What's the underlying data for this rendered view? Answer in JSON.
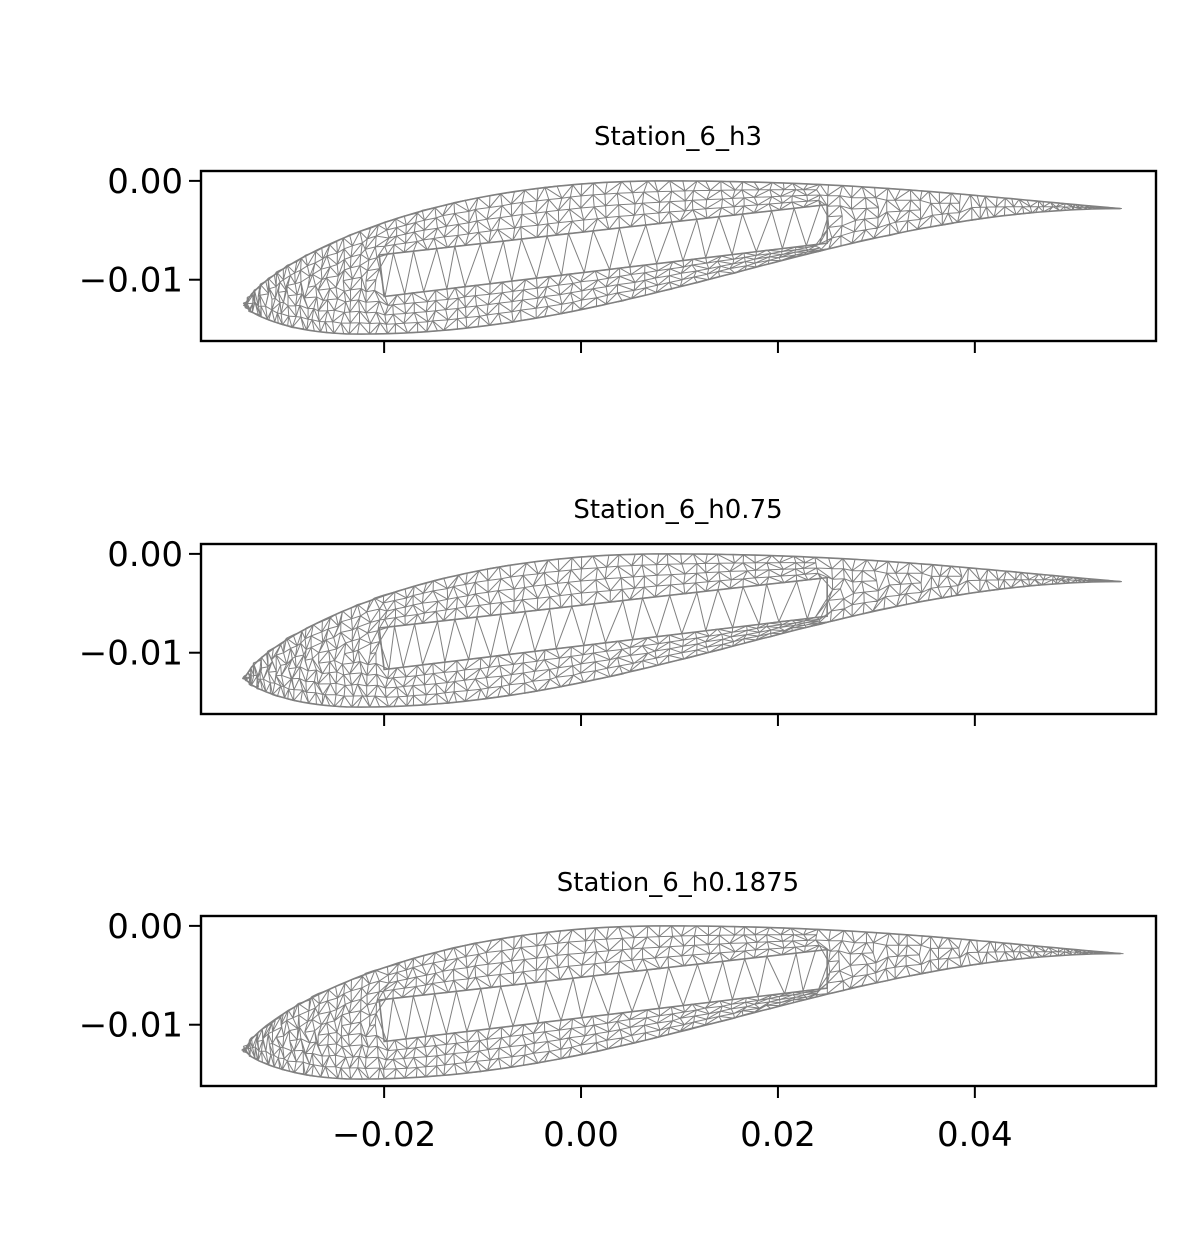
{
  "chart_data": [
    {
      "type": "mesh",
      "title": "Station_6_h3",
      "xlim": [
        -0.0386,
        0.0584
      ],
      "ylim": [
        -0.0162,
        0.001
      ],
      "xticks": [
        -0.02,
        0.0,
        0.02,
        0.04
      ],
      "xtick_labels": [
        "",
        "",
        "",
        ""
      ],
      "yticks": [
        0.0,
        -0.01
      ],
      "ytick_labels": [
        "0.00",
        "−0.01"
      ],
      "airfoil": {
        "leading_edge": [
          -0.0342,
          -0.0126
        ],
        "trailing_edge": [
          0.0548,
          -0.0028
        ],
        "upper_max": [
          0.0085,
          0.0
        ],
        "lower_min": [
          -0.0225,
          -0.0155
        ]
      },
      "web_box": {
        "upper": [
          [
            -0.0205,
            -0.0075
          ],
          [
            0.025,
            -0.0024
          ]
        ],
        "lower": [
          [
            -0.02,
            -0.0117
          ],
          [
            0.025,
            -0.0063
          ]
        ]
      },
      "mesh_color": "#808080"
    },
    {
      "type": "mesh",
      "title": "Station_6_h0.75",
      "xlim": [
        -0.0386,
        0.0584
      ],
      "ylim": [
        -0.0162,
        0.001
      ],
      "xticks": [
        -0.02,
        0.0,
        0.02,
        0.04
      ],
      "xtick_labels": [
        "",
        "",
        "",
        ""
      ],
      "yticks": [
        0.0,
        -0.01
      ],
      "ytick_labels": [
        "0.00",
        "−0.01"
      ],
      "airfoil": {
        "leading_edge": [
          -0.0342,
          -0.0126
        ],
        "trailing_edge": [
          0.0548,
          -0.0028
        ],
        "upper_max": [
          0.0085,
          0.0
        ],
        "lower_min": [
          -0.0225,
          -0.0155
        ]
      },
      "web_box": {
        "upper": [
          [
            -0.0205,
            -0.0075
          ],
          [
            0.025,
            -0.0024
          ]
        ],
        "lower": [
          [
            -0.02,
            -0.0117
          ],
          [
            0.025,
            -0.0063
          ]
        ]
      },
      "mesh_color": "#808080"
    },
    {
      "type": "mesh",
      "title": "Station_6_h0.1875",
      "xlim": [
        -0.0386,
        0.0584
      ],
      "ylim": [
        -0.0162,
        0.001
      ],
      "xticks": [
        -0.02,
        0.0,
        0.02,
        0.04
      ],
      "xtick_labels": [
        "−0.02",
        "0.00",
        "0.02",
        "0.04"
      ],
      "yticks": [
        0.0,
        -0.01
      ],
      "ytick_labels": [
        "0.00",
        "−0.01"
      ],
      "airfoil": {
        "leading_edge": [
          -0.0342,
          -0.0126
        ],
        "trailing_edge": [
          0.0548,
          -0.0028
        ],
        "upper_max": [
          0.0085,
          0.0
        ],
        "lower_min": [
          -0.0225,
          -0.0155
        ]
      },
      "web_box": {
        "upper": [
          [
            -0.0205,
            -0.0075
          ],
          [
            0.025,
            -0.0024
          ]
        ],
        "lower": [
          [
            -0.02,
            -0.0117
          ],
          [
            0.025,
            -0.0063
          ]
        ]
      },
      "mesh_color": "#808080"
    }
  ]
}
